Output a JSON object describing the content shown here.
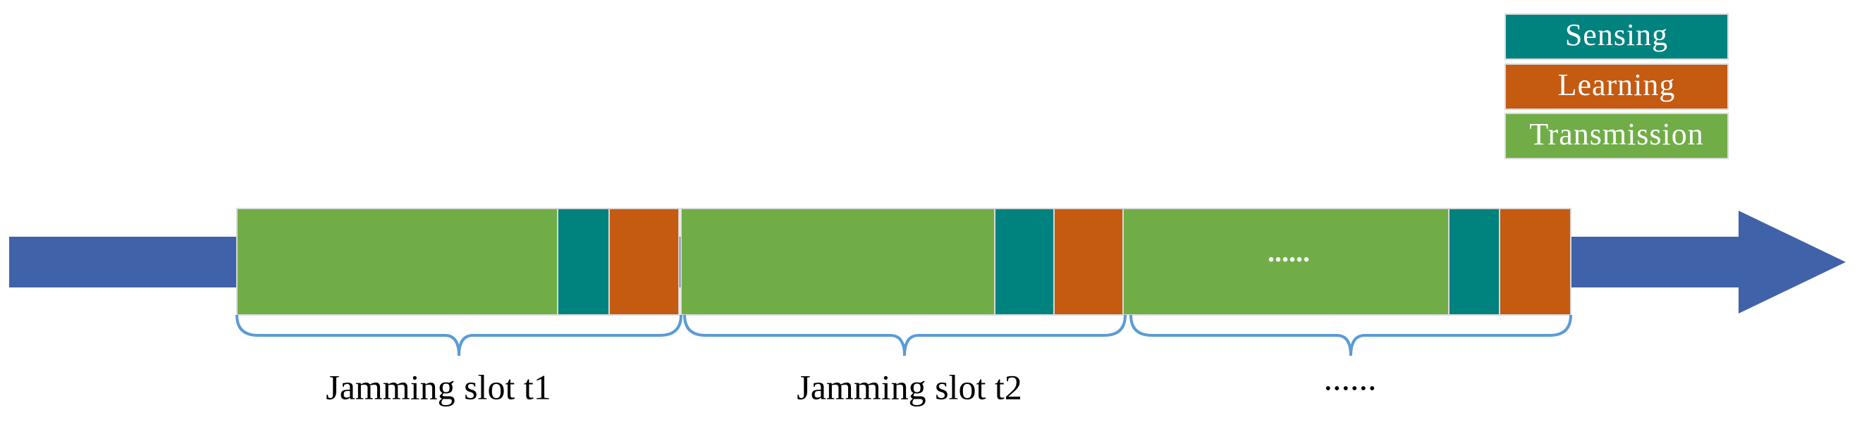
{
  "legend": {
    "items": [
      "Sensing",
      "Learning",
      "Transmission"
    ]
  },
  "timeline": {
    "slots": [
      {
        "label": "Jamming slot t1"
      },
      {
        "label": "Jamming slot t2"
      },
      {
        "label": "......",
        "inner": "......"
      }
    ]
  }
}
